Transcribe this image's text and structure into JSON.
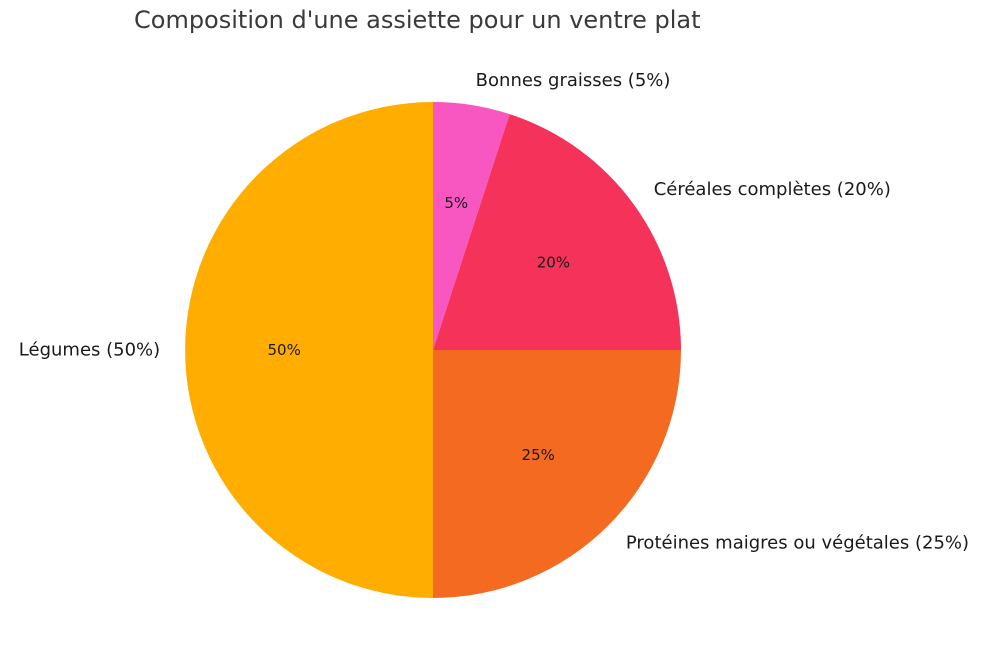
{
  "chart_data": {
    "type": "pie",
    "title": "Composition d'une assiette pour un ventre plat",
    "slices": [
      {
        "label": "Bonnes graisses (5%)",
        "value": 5,
        "pct_label": "5%",
        "color": "#F857C2"
      },
      {
        "label": "Céréales complètes (20%)",
        "value": 20,
        "pct_label": "20%",
        "color": "#F5325A"
      },
      {
        "label": "Protéines maigres ou végétales (25%)",
        "value": 25,
        "pct_label": "25%",
        "color": "#F36A20"
      },
      {
        "label": "Légumes (50%)",
        "value": 50,
        "pct_label": "50%",
        "color": "#FFAE00"
      }
    ],
    "start": "top",
    "direction": "clockwise"
  }
}
